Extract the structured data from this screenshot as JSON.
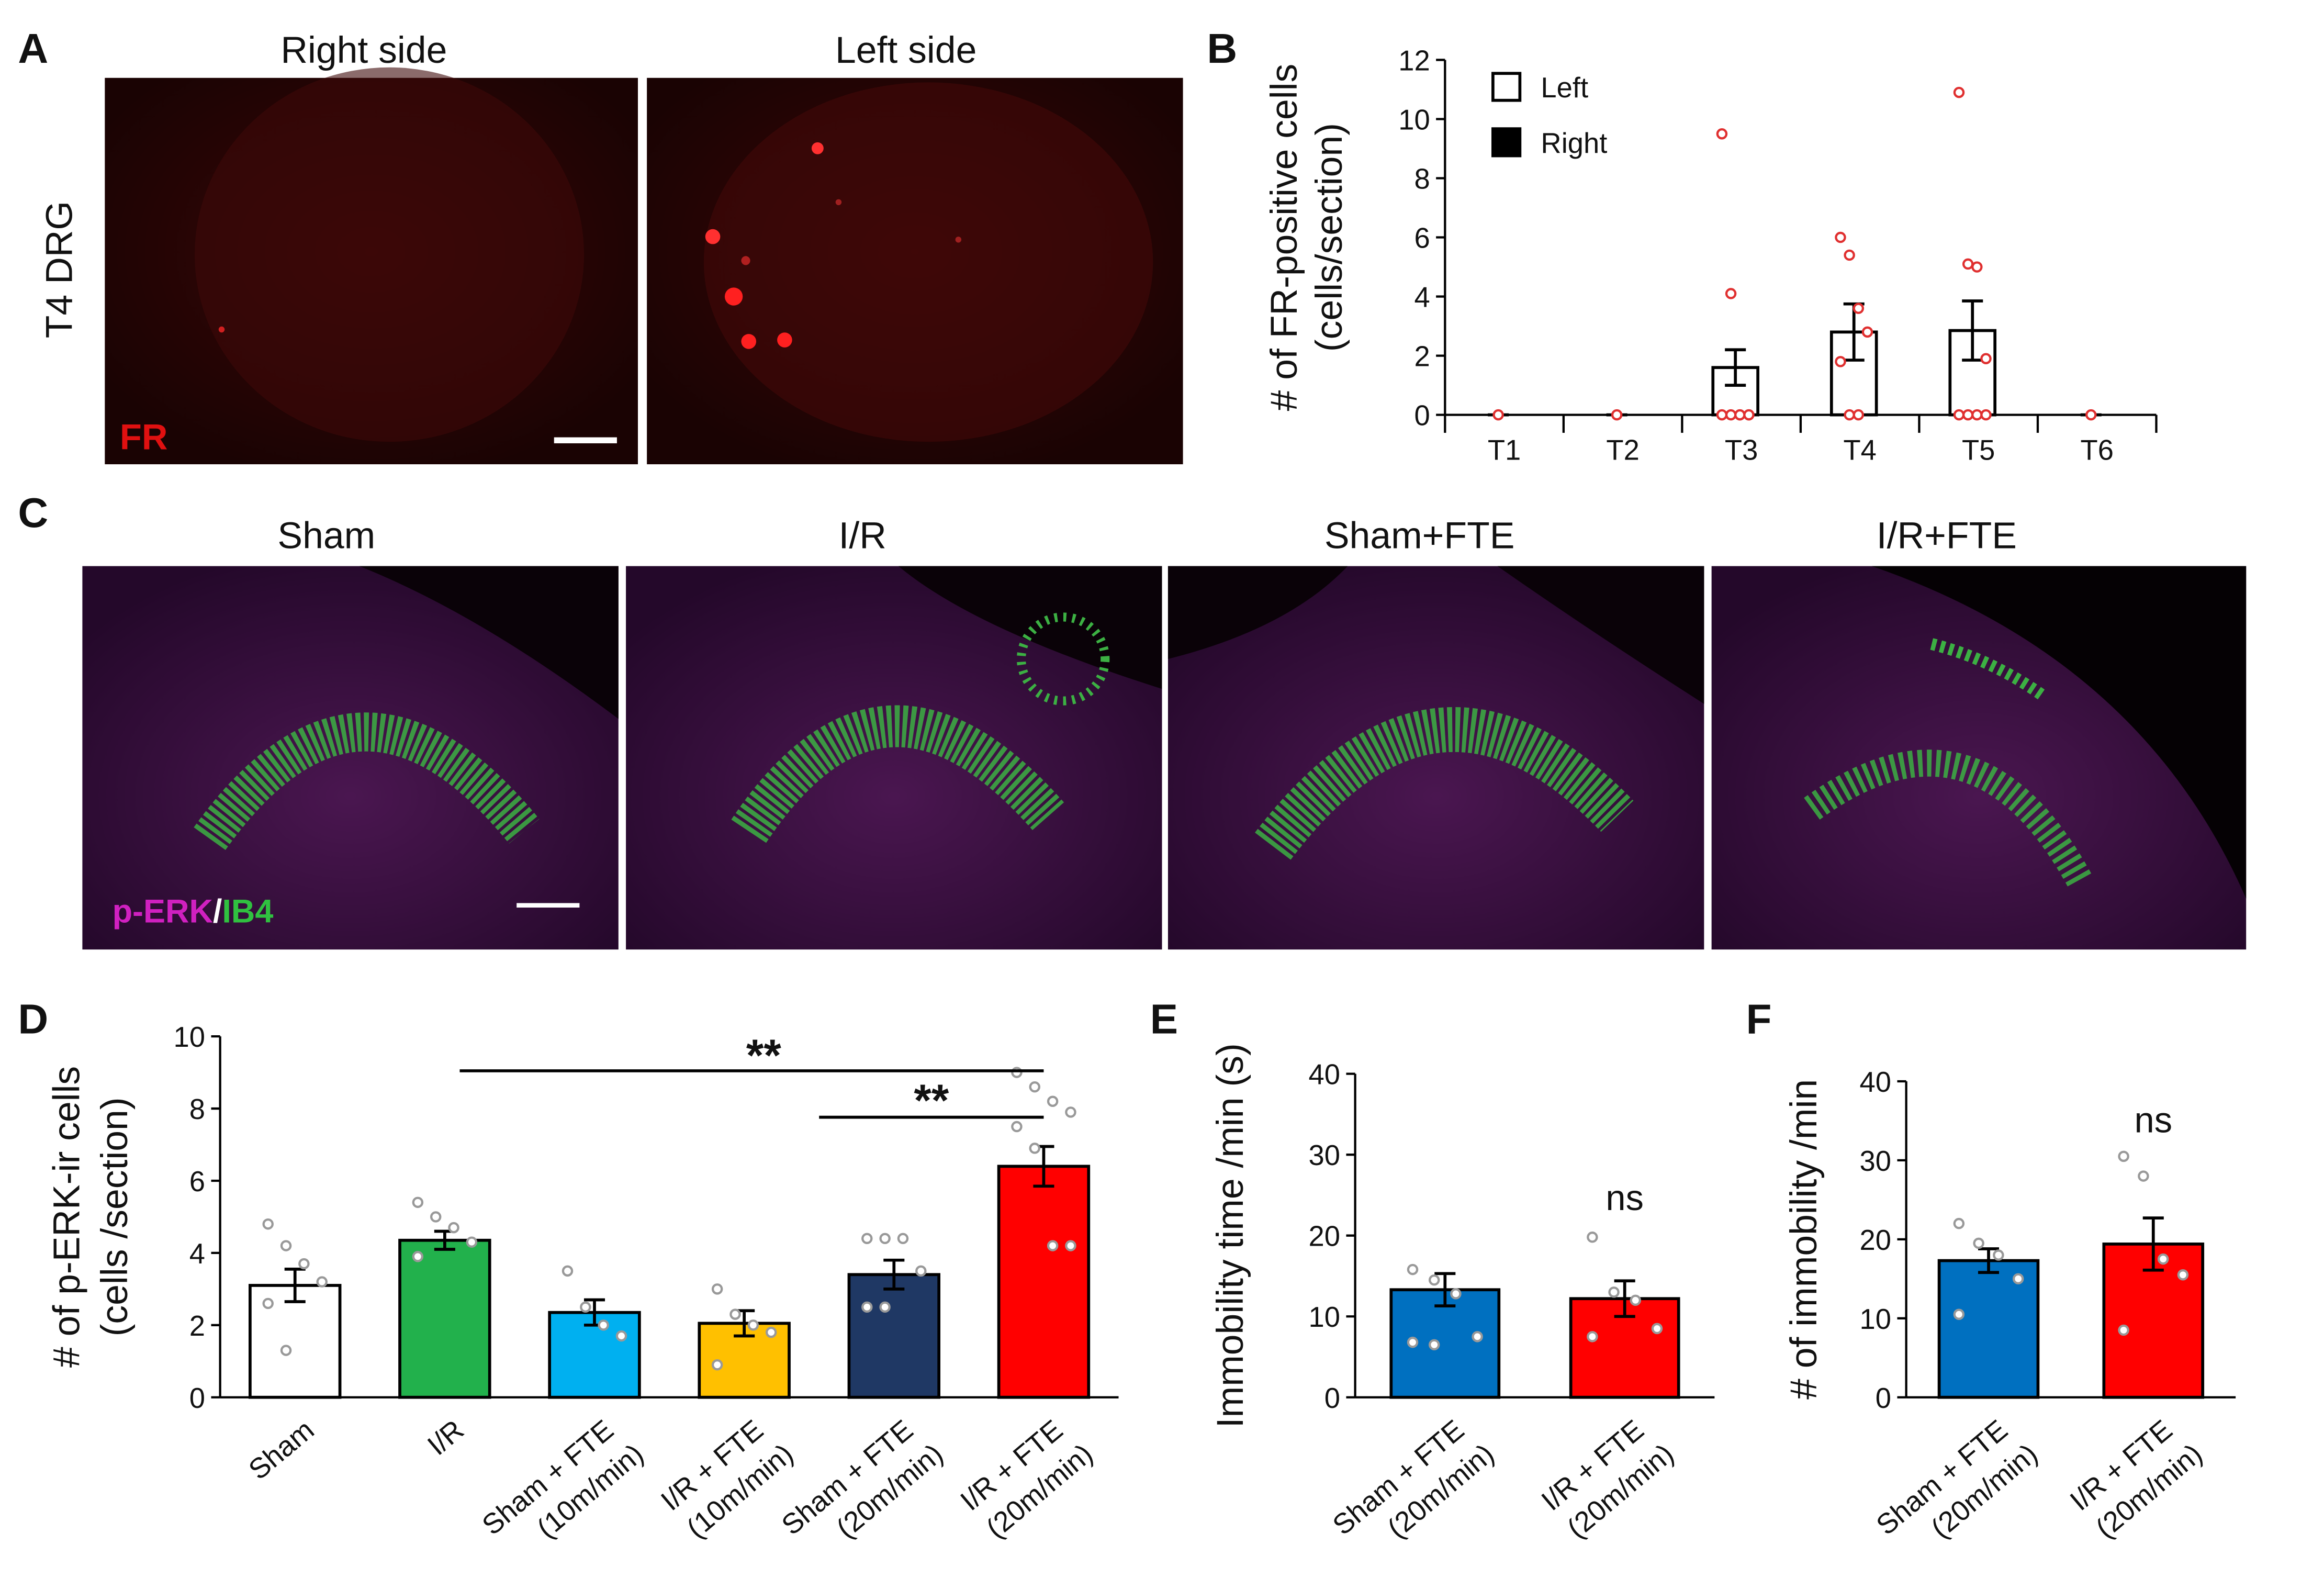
{
  "panel_labels": [
    "A",
    "B",
    "C",
    "D",
    "E",
    "F"
  ],
  "panel_a": {
    "titles": [
      "Right side",
      "Left side"
    ],
    "side_label": "T4 DRG",
    "stain": "FR"
  },
  "panel_c": {
    "titles": [
      "Sham",
      "I/R",
      "Sham+FTE",
      "I/R+FTE"
    ],
    "stain": [
      "p-ERK",
      "/",
      "IB4"
    ]
  },
  "chart_data": [
    {
      "type": "bar",
      "ylabel": [
        "# of  FR-positive cells",
        "(cells/section)"
      ],
      "categories": [
        [
          "T1"
        ],
        [
          "T2"
        ],
        [
          "T3"
        ],
        [
          "T4"
        ],
        [
          "T5"
        ],
        [
          "T6"
        ]
      ],
      "series": [
        {
          "name": "Left",
          "color": "#ffffff",
          "values": [
            0,
            0,
            1.6,
            2.8,
            2.85,
            0
          ],
          "errors": [
            0,
            0,
            0.6,
            0.95,
            1.0,
            0
          ],
          "points": [
            [
              0
            ],
            [
              0
            ],
            [
              9.5,
              4.1,
              0,
              0,
              0,
              0,
              0,
              0
            ],
            [
              6,
              5.4,
              3.6,
              2.8,
              1.8,
              0,
              0
            ],
            [
              10.9,
              5.1,
              5.0,
              1.9,
              0,
              0,
              0,
              0
            ],
            [
              0
            ]
          ]
        },
        {
          "name": "Right",
          "color": "#000000",
          "values": [
            0,
            0,
            0,
            0,
            0,
            0
          ]
        }
      ],
      "edgecolor": "#000000",
      "pointcolor": "#e03030",
      "ylim": [
        0,
        12
      ],
      "yticks": [
        0,
        2,
        4,
        6,
        8,
        10,
        12
      ],
      "legend": "upper-left"
    },
    {
      "type": "bar",
      "ylabel": [
        "# of p-ERK-ir cells",
        "(cells /section)"
      ],
      "categories": [
        [
          "Sham"
        ],
        [
          "I/R"
        ],
        [
          "Sham + FTE",
          "(10m/min)"
        ],
        [
          "I/R + FTE",
          "(10m/min)"
        ],
        [
          "Sham + FTE",
          "(20m/min)"
        ],
        [
          "I/R + FTE",
          "(20m/min)"
        ]
      ],
      "values": [
        3.1,
        4.35,
        2.35,
        2.05,
        3.4,
        6.4
      ],
      "errors": [
        0.45,
        0.25,
        0.35,
        0.35,
        0.4,
        0.55
      ],
      "colors": [
        "#ffffff",
        "#22b14c",
        "#00b0f0",
        "#ffc000",
        "#1f3864",
        "#ff0000"
      ],
      "points": [
        [
          4.8,
          4.2,
          3.7,
          3.2,
          2.6,
          1.3
        ],
        [
          5.4,
          5.0,
          4.7,
          4.3,
          3.9
        ],
        [
          3.5,
          2.5,
          2.0,
          1.7
        ],
        [
          3.0,
          2.3,
          2.0,
          1.8,
          0.9
        ],
        [
          4.4,
          4.4,
          4.4,
          3.5,
          2.5,
          2.5
        ],
        [
          9.0,
          8.6,
          8.2,
          7.9,
          7.5,
          6.9,
          4.2,
          4.2
        ]
      ],
      "edgecolor": "#000000",
      "pointcolor": "#999999",
      "ylim": [
        0,
        10
      ],
      "yticks": [
        0,
        2,
        4,
        6,
        8,
        10
      ],
      "annotations": [
        "**",
        "**"
      ]
    },
    {
      "type": "bar",
      "ylabel": [
        "Immobility time /min (s)"
      ],
      "categories": [
        [
          "Sham + FTE",
          "(20m/min)"
        ],
        [
          "I/R + FTE",
          "(20m/min)"
        ]
      ],
      "values": [
        13.3,
        12.2
      ],
      "errors": [
        2.0,
        2.2
      ],
      "colors": [
        "#0070c0",
        "#ff0000"
      ],
      "points": [
        [
          15.8,
          14.5,
          12.8,
          7.5,
          6.8,
          6.5
        ],
        [
          19.8,
          13.0,
          12.0,
          8.5,
          7.5
        ]
      ],
      "edgecolor": "#000000",
      "pointcolor": "#999999",
      "ylim": [
        0,
        40
      ],
      "yticks": [
        0,
        10,
        20,
        30,
        40
      ],
      "annotations": [
        "ns"
      ]
    },
    {
      "type": "bar",
      "ylabel": [
        "# of immobility /min"
      ],
      "categories": [
        [
          "Sham + FTE",
          "(20m/min)"
        ],
        [
          "I/R + FTE",
          "(20m/min)"
        ]
      ],
      "values": [
        17.3,
        19.4
      ],
      "errors": [
        1.5,
        3.3
      ],
      "colors": [
        "#0070c0",
        "#ff0000"
      ],
      "points": [
        [
          22,
          19.5,
          18,
          15,
          10.5
        ],
        [
          30.5,
          28,
          17.5,
          15.5,
          8.5
        ]
      ],
      "edgecolor": "#000000",
      "pointcolor": "#999999",
      "ylim": [
        0,
        40
      ],
      "yticks": [
        0,
        10,
        20,
        30,
        40
      ],
      "annotations": [
        "ns"
      ]
    }
  ]
}
